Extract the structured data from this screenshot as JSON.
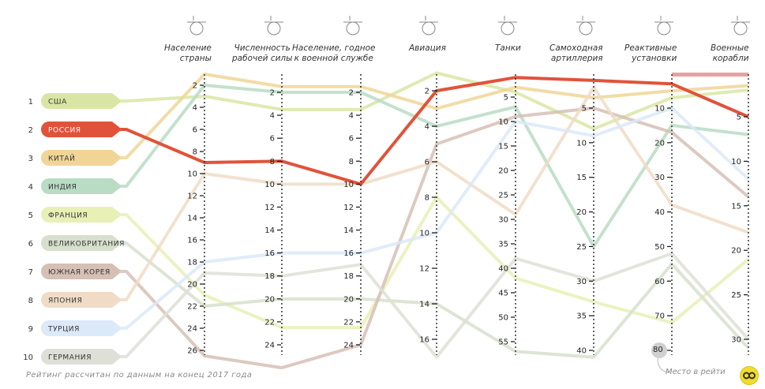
{
  "chart_data": {
    "type": "parallel-coordinates",
    "title": "",
    "axes": [
      {
        "key": "population",
        "label": [
          "Население",
          "страны"
        ],
        "icon": "person-with-hat-icon",
        "ticks": [
          2,
          4,
          6,
          8,
          10,
          12,
          14,
          16,
          18,
          20,
          22,
          24,
          26
        ],
        "range": [
          1,
          27
        ]
      },
      {
        "key": "workforce",
        "label": [
          "Численность",
          "рабочей силы"
        ],
        "icon": "shovel-icon",
        "ticks": [
          2,
          4,
          6,
          8,
          10,
          12,
          14,
          16,
          18,
          20,
          22,
          24
        ],
        "range": [
          1,
          25
        ]
      },
      {
        "key": "military_age",
        "label": [
          "Население, годное",
          "к военной службе"
        ],
        "icon": "dog-tags-icon",
        "ticks": [
          2,
          4,
          6,
          8,
          10,
          12,
          14,
          16,
          18,
          20,
          22,
          24
        ],
        "range": [
          1,
          25
        ]
      },
      {
        "key": "aviation",
        "label": [
          "Авиация"
        ],
        "icon": "propeller-icon",
        "ticks": [
          2,
          4,
          6,
          8,
          10,
          12,
          14,
          16
        ],
        "range": [
          1,
          17
        ]
      },
      {
        "key": "tanks",
        "label": [
          "Танки"
        ],
        "icon": "tank-icon",
        "ticks": [
          5,
          10,
          15,
          20,
          25,
          30,
          35,
          40,
          45,
          50,
          55
        ],
        "range": [
          1,
          57
        ]
      },
      {
        "key": "spa",
        "label": [
          "Самоходная",
          "артиллерия"
        ],
        "icon": "cannon-icon",
        "ticks": [
          5,
          10,
          15,
          20,
          25,
          30,
          35,
          40
        ],
        "range": [
          1,
          41
        ]
      },
      {
        "key": "rockets",
        "label": [
          "Реактивные",
          "установки"
        ],
        "icon": "rocket-launcher-icon",
        "ticks": [
          10,
          20,
          30,
          40,
          50,
          60,
          70,
          80
        ],
        "range": [
          1,
          82
        ]
      },
      {
        "key": "warships",
        "label": [
          "Военные",
          "корабли"
        ],
        "icon": "warship-icon",
        "ticks": [
          5,
          10,
          15,
          20,
          25,
          30
        ],
        "range": [
          1,
          31
        ]
      }
    ],
    "series": [
      {
        "rank": 1,
        "name": "США",
        "color": "#d9e6a3",
        "values": [
          3,
          3.5,
          3.5,
          1,
          4,
          8,
          7,
          2
        ]
      },
      {
        "rank": 2,
        "name": "РОССИЯ",
        "color": "#e0533a",
        "values": [
          9,
          8,
          10,
          2,
          1,
          1,
          3,
          5
        ],
        "highlight": true
      },
      {
        "rank": 3,
        "name": "КИТАЙ",
        "color": "#f0d596",
        "values": [
          1,
          1.5,
          1.5,
          3,
          3,
          3.5,
          5,
          1.5
        ]
      },
      {
        "rank": 4,
        "name": "ИНДИЯ",
        "color": "#b9dcc4",
        "values": [
          2,
          2,
          2,
          4,
          7,
          25,
          15,
          7
        ]
      },
      {
        "rank": 5,
        "name": "ФРАНЦИЯ",
        "color": "#e8f0b5",
        "values": [
          21,
          22.5,
          22.5,
          8,
          42,
          33,
          72,
          21
        ]
      },
      {
        "rank": 6,
        "name": "ВЕЛИКОБРИТАНИЯ",
        "color": "#d6e0cc",
        "values": [
          22,
          20,
          20,
          14,
          57,
          41,
          55,
          31
        ]
      },
      {
        "rank": 7,
        "name": "ЮЖНАЯ КОРЕЯ",
        "color": "#d6bfb5",
        "values": [
          26.5,
          26,
          24,
          5,
          9,
          5,
          17,
          14
        ]
      },
      {
        "rank": 8,
        "name": "ЯПОНИЯ",
        "color": "#f0dcc6",
        "values": [
          10,
          10,
          10,
          6,
          29,
          2,
          38,
          18
        ]
      },
      {
        "rank": 9,
        "name": "ТУРЦИЯ",
        "color": "#dbe9f8",
        "values": [
          18,
          16,
          16,
          10,
          10,
          9,
          10,
          12
        ]
      },
      {
        "rank": 10,
        "name": "ГЕРМАНИЯ",
        "color": "#dedfd6",
        "values": [
          19,
          18,
          17,
          17,
          38,
          30,
          52,
          30
        ]
      }
    ],
    "extra_marker": {
      "axis": "warships",
      "color": "#e8a0a0",
      "note": "pink band at top of warships axis"
    }
  },
  "footnote": "Рейтинг рассчитан по данным на конец 2017 года",
  "legend_hint": "Место в рейти",
  "badge_example": "80"
}
